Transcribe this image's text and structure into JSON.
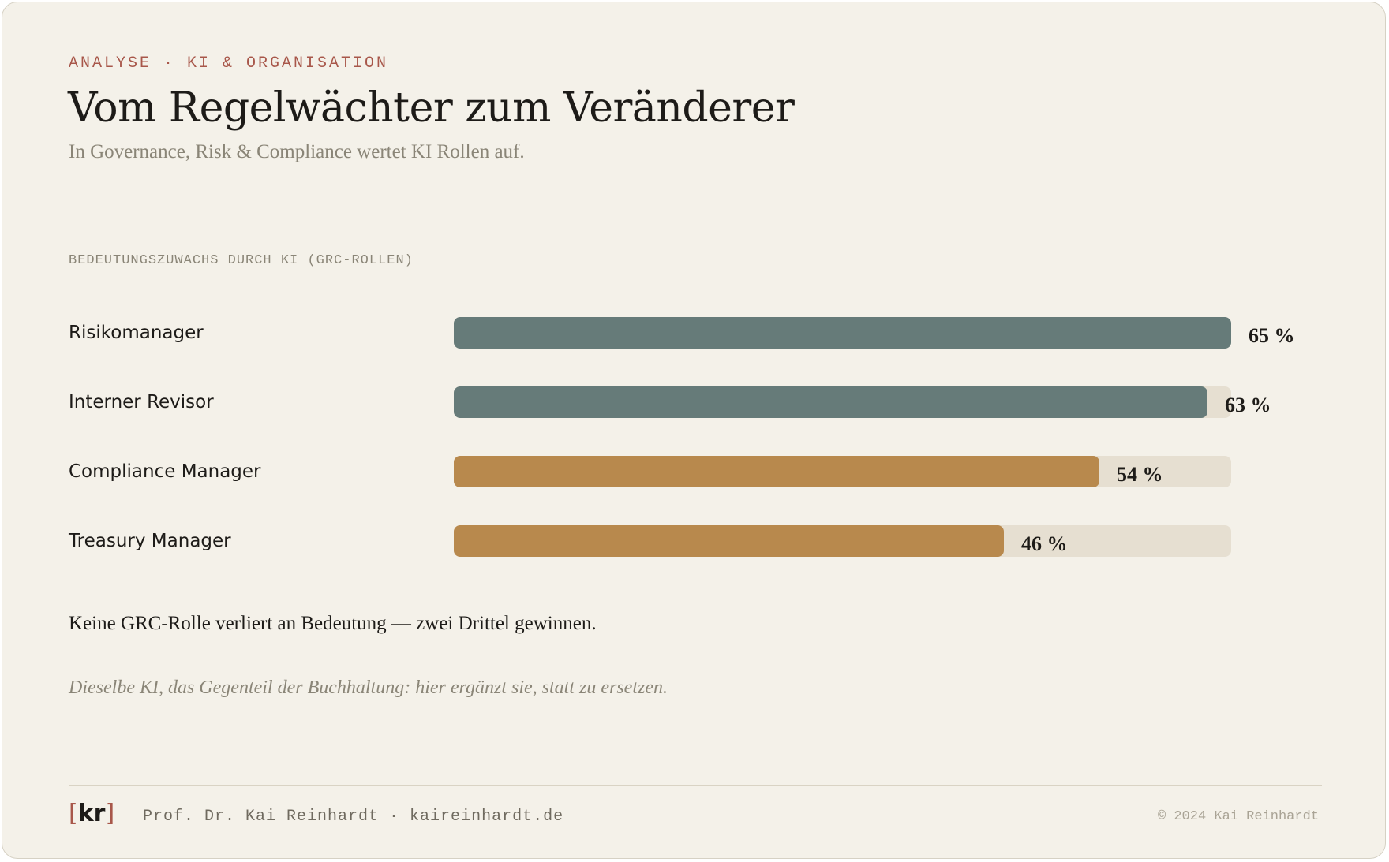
{
  "header": {
    "eyebrow": "ANALYSE · KI & ORGANISATION",
    "title": "Vom Regelwächter zum Veränderer",
    "subtitle": "In Governance, Risk & Compliance wertet KI Rollen auf."
  },
  "chart_data": {
    "type": "bar",
    "orientation": "horizontal",
    "title": "BEDEUTUNGSZUWACHS DURCH KI (GRC-ROLLEN)",
    "categories": [
      "Risikomanager",
      "Interner Revisor",
      "Compliance Manager",
      "Treasury Manager"
    ],
    "values": [
      65,
      63,
      54,
      46
    ],
    "value_labels": [
      "65 %",
      "63 %",
      "54 %",
      "46 %"
    ],
    "xlim": [
      0,
      65
    ],
    "grid": false,
    "colors": [
      "#667b79",
      "#667b79",
      "#b8894d",
      "#b8894d"
    ],
    "track_color": "#e6dfd1"
  },
  "takeaway": "Keine GRC-Rolle verliert an Bedeutung — zwei Drittel gewinnen.",
  "note": "Dieselbe KI, das Gegenteil der Buchhaltung: hier ergänzt sie, statt zu ersetzen.",
  "footer": {
    "logo_open": "[",
    "logo_text": "kr",
    "logo_close": "]",
    "byline": "Prof. Dr. Kai Reinhardt · kaireinhardt.de",
    "copyright": "© 2024 Kai Reinhardt"
  },
  "colors": {
    "background": "#f4f1e9",
    "accent": "#a8574a",
    "teal": "#667b79",
    "ochre": "#b8894d"
  }
}
